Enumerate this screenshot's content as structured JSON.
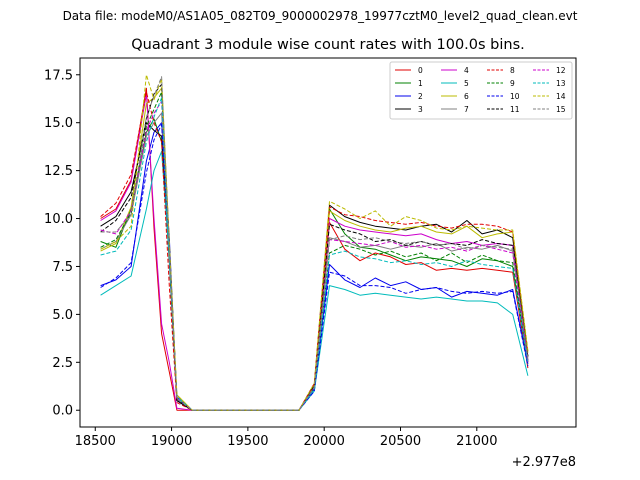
{
  "file_line": "Data file: modeM0/AS1A05_082T09_9000002978_19977cztM0_level2_quad_clean.evt",
  "chart_data": {
    "type": "line",
    "title": "Quadrant 3 module wise count rates with 100.0s bins.",
    "xlabel": "",
    "ylabel": "",
    "x_offset_label": "+2.977e8",
    "xlim": [
      18400,
      21650
    ],
    "ylim": [
      -0.875,
      18.375
    ],
    "grid": false,
    "legend_position": "top-right",
    "x_ticks": [
      18500,
      19000,
      19500,
      20000,
      20500,
      21000
    ],
    "x_tick_labels": [
      "18500",
      "19000",
      "19500",
      "20000",
      "20500",
      "21000"
    ],
    "y_ticks": [
      0.0,
      2.5,
      5.0,
      7.5,
      10.0,
      12.5,
      15.0,
      17.5
    ],
    "y_tick_labels": [
      "0.0",
      "2.5",
      "5.0",
      "7.5",
      "10.0",
      "12.5",
      "15.0",
      "17.5"
    ],
    "x": [
      18535,
      18635,
      18735,
      18835,
      18885,
      18935,
      18985,
      19035,
      19135,
      19235,
      19335,
      19435,
      19535,
      19635,
      19735,
      19835,
      19935,
      20035,
      20135,
      20235,
      20335,
      20435,
      20535,
      20635,
      20735,
      20835,
      20935,
      21035,
      21135,
      21235,
      21335
    ],
    "series": [
      {
        "name": "0",
        "color": "#e00000",
        "dash": false,
        "values": [
          10.0,
          10.5,
          12.0,
          16.8,
          9.5,
          4.0,
          2.0,
          0.0,
          0,
          0,
          0,
          0,
          0,
          0,
          0,
          0,
          1.2,
          9.8,
          8.4,
          7.8,
          8.2,
          8.0,
          7.6,
          7.7,
          7.3,
          7.4,
          7.3,
          7.4,
          7.3,
          7.2,
          2.2
        ]
      },
      {
        "name": "1",
        "color": "#008000",
        "dash": false,
        "values": [
          8.8,
          8.5,
          10.5,
          14.5,
          15.2,
          14.0,
          8.0,
          0.5,
          0,
          0,
          0,
          0,
          0,
          0,
          0,
          0,
          1.2,
          10.5,
          9.2,
          8.5,
          8.4,
          8.1,
          7.8,
          8.0,
          7.9,
          7.8,
          7.5,
          7.9,
          7.8,
          7.5,
          2.5
        ]
      },
      {
        "name": "2",
        "color": "#0000ee",
        "dash": false,
        "values": [
          6.5,
          6.8,
          7.5,
          13.0,
          14.5,
          15.0,
          9.0,
          0.5,
          0,
          0,
          0,
          0,
          0,
          0,
          0,
          0,
          1.1,
          7.6,
          6.8,
          6.4,
          6.9,
          6.5,
          6.7,
          6.3,
          6.4,
          5.9,
          6.2,
          6.1,
          6.0,
          6.3,
          2.4
        ]
      },
      {
        "name": "3",
        "color": "#000000",
        "dash": false,
        "values": [
          9.6,
          10.1,
          11.4,
          15.0,
          14.6,
          14.3,
          7.8,
          0.5,
          0,
          0,
          0,
          0,
          0,
          0,
          0,
          0,
          1.3,
          10.7,
          10.1,
          9.8,
          9.6,
          9.5,
          9.4,
          9.6,
          9.7,
          9.3,
          9.9,
          9.2,
          9.4,
          9.0,
          2.8
        ]
      },
      {
        "name": "4",
        "color": "#cc00cc",
        "dash": false,
        "values": [
          9.9,
          10.4,
          11.9,
          16.5,
          10.0,
          4.5,
          2.5,
          0.1,
          0,
          0,
          0,
          0,
          0,
          0,
          0,
          0,
          1.2,
          10.0,
          9.6,
          9.4,
          9.3,
          9.2,
          9.1,
          9.2,
          8.9,
          8.7,
          8.8,
          8.6,
          8.7,
          8.6,
          2.5
        ]
      },
      {
        "name": "5",
        "color": "#00bbbb",
        "dash": false,
        "values": [
          6.0,
          6.5,
          7.0,
          10.5,
          12.5,
          13.5,
          8.0,
          0.6,
          0,
          0,
          0,
          0,
          0,
          0,
          0,
          0,
          1.0,
          6.5,
          6.3,
          6.0,
          6.1,
          6.0,
          5.9,
          5.8,
          5.9,
          5.8,
          5.7,
          5.7,
          5.6,
          5.0,
          1.8
        ]
      },
      {
        "name": "6",
        "color": "#bbbb00",
        "dash": false,
        "values": [
          8.3,
          8.7,
          10.6,
          16.0,
          16.3,
          16.8,
          8.5,
          0.8,
          0,
          0,
          0,
          0,
          0,
          0,
          0,
          0,
          1.3,
          10.4,
          9.9,
          9.6,
          9.4,
          9.3,
          9.5,
          9.6,
          9.3,
          9.2,
          9.6,
          9.0,
          9.2,
          9.3,
          3.0
        ]
      },
      {
        "name": "7",
        "color": "#808080",
        "dash": false,
        "values": [
          8.4,
          8.8,
          10.2,
          14.3,
          15.0,
          15.5,
          8.2,
          0.7,
          0,
          0,
          0,
          0,
          0,
          0,
          0,
          0,
          1.2,
          9.0,
          8.8,
          8.5,
          8.6,
          8.4,
          8.6,
          8.5,
          8.7,
          8.3,
          8.5,
          8.4,
          8.6,
          8.3,
          2.6
        ]
      },
      {
        "name": "8",
        "color": "#e00000",
        "dash": true,
        "values": [
          10.1,
          10.8,
          12.3,
          16.6,
          15.0,
          14.0,
          6.5,
          0.4,
          0,
          0,
          0,
          0,
          0,
          0,
          0,
          0,
          1.4,
          10.6,
          10.2,
          10.1,
          9.9,
          9.8,
          9.7,
          9.8,
          9.6,
          9.5,
          9.7,
          9.7,
          9.6,
          9.3,
          3.0
        ]
      },
      {
        "name": "9",
        "color": "#008000",
        "dash": true,
        "values": [
          8.5,
          8.9,
          10.3,
          14.8,
          15.7,
          16.6,
          8.6,
          0.6,
          0,
          0,
          0,
          0,
          0,
          0,
          0,
          0,
          1.2,
          8.2,
          8.6,
          8.4,
          8.1,
          8.3,
          8.0,
          8.2,
          7.8,
          8.2,
          7.7,
          8.1,
          7.8,
          7.7,
          2.6
        ]
      },
      {
        "name": "10",
        "color": "#0000ee",
        "dash": true,
        "values": [
          6.4,
          6.9,
          7.7,
          12.4,
          14.1,
          14.9,
          8.5,
          0.7,
          0,
          0,
          0,
          0,
          0,
          0,
          0,
          0,
          1.0,
          7.2,
          7.0,
          6.5,
          6.5,
          6.4,
          6.1,
          6.3,
          6.4,
          6.2,
          6.1,
          6.2,
          6.1,
          6.2,
          2.3
        ]
      },
      {
        "name": "11",
        "color": "#000000",
        "dash": true,
        "values": [
          9.3,
          9.9,
          11.1,
          15.2,
          16.5,
          17.0,
          8.7,
          0.5,
          0,
          0,
          0,
          0,
          0,
          0,
          0,
          0,
          1.3,
          9.7,
          9.4,
          9.2,
          8.8,
          8.9,
          8.6,
          8.8,
          8.6,
          8.7,
          8.6,
          8.9,
          8.7,
          8.6,
          2.8
        ]
      },
      {
        "name": "12",
        "color": "#cc00cc",
        "dash": true,
        "values": [
          9.4,
          9.2,
          10.4,
          14.6,
          15.5,
          16.1,
          8.4,
          0.6,
          0,
          0,
          0,
          0,
          0,
          0,
          0,
          0,
          1.2,
          8.9,
          8.8,
          8.7,
          8.6,
          8.8,
          8.5,
          8.6,
          8.4,
          8.5,
          8.3,
          8.6,
          8.4,
          8.2,
          2.6
        ]
      },
      {
        "name": "13",
        "color": "#00bbbb",
        "dash": true,
        "values": [
          8.1,
          8.3,
          9.4,
          14.0,
          15.3,
          16.3,
          8.1,
          0.7,
          0,
          0,
          0,
          0,
          0,
          0,
          0,
          0,
          1.1,
          8.1,
          8.3,
          8.0,
          7.9,
          7.7,
          7.8,
          7.6,
          7.7,
          7.5,
          7.8,
          7.6,
          7.5,
          7.4,
          2.4
        ]
      },
      {
        "name": "14",
        "color": "#bbbb00",
        "dash": true,
        "values": [
          8.4,
          8.8,
          9.6,
          17.5,
          16.2,
          17.3,
          8.8,
          0.8,
          0,
          0,
          0,
          0,
          0,
          0,
          0,
          0,
          1.4,
          10.9,
          10.5,
          10.0,
          10.4,
          9.6,
          10.1,
          9.9,
          9.5,
          9.4,
          9.6,
          9.5,
          9.4,
          9.4,
          3.1
        ]
      },
      {
        "name": "15",
        "color": "#808080",
        "dash": true,
        "values": [
          9.3,
          9.3,
          10.2,
          15.3,
          16.4,
          17.4,
          8.6,
          0.6,
          0,
          0,
          0,
          0,
          0,
          0,
          0,
          0,
          1.2,
          8.9,
          9.1,
          8.9,
          9.0,
          8.8,
          8.7,
          8.8,
          8.6,
          8.7,
          8.4,
          8.6,
          8.5,
          8.4,
          2.7
        ]
      }
    ]
  }
}
